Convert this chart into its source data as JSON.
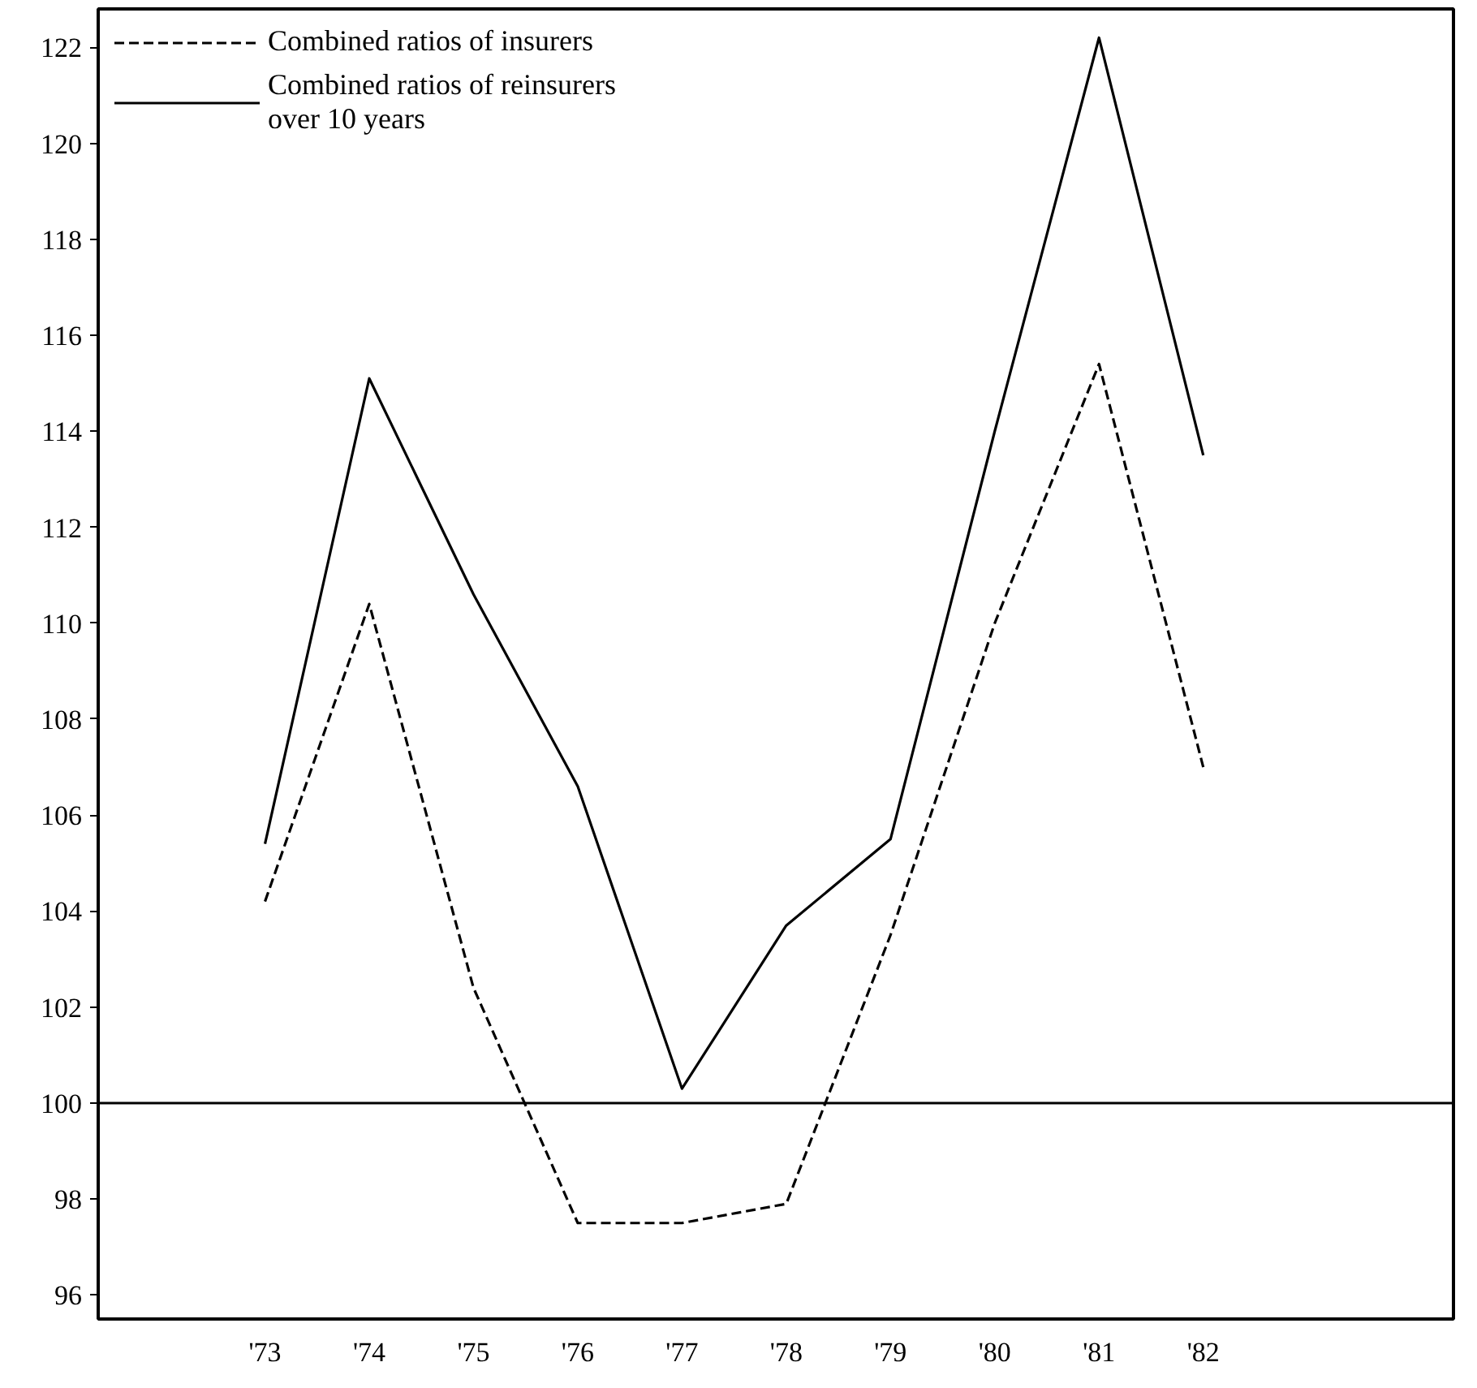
{
  "chart_data": {
    "type": "line",
    "categories": [
      "'73",
      "'74",
      "'75",
      "'76",
      "'77",
      "'78",
      "'79",
      "'80",
      "'81",
      "'82"
    ],
    "series": [
      {
        "name": "Combined ratios of insurers",
        "color": "#000000",
        "line_style": "dashed",
        "values": [
          104.2,
          110.4,
          102.4,
          97.5,
          97.5,
          97.9,
          103.5,
          110.0,
          115.4,
          107.0
        ]
      },
      {
        "name": "Combined ratios of reinsurers\nover 10 years",
        "color": "#000000",
        "line_style": "solid",
        "values": [
          105.4,
          115.1,
          110.6,
          106.6,
          100.3,
          103.7,
          105.5,
          114.0,
          122.2,
          113.5
        ]
      }
    ],
    "ylim": [
      95.5,
      122.8
    ],
    "yticks": [
      96,
      98,
      100,
      102,
      104,
      106,
      108,
      110,
      112,
      114,
      116,
      118,
      120,
      122
    ],
    "ref_lines": [
      {
        "axis": "y",
        "value": 100,
        "color": "#000000",
        "line_style": "solid"
      }
    ],
    "grid": false,
    "legend": "top left",
    "marker": "none"
  }
}
